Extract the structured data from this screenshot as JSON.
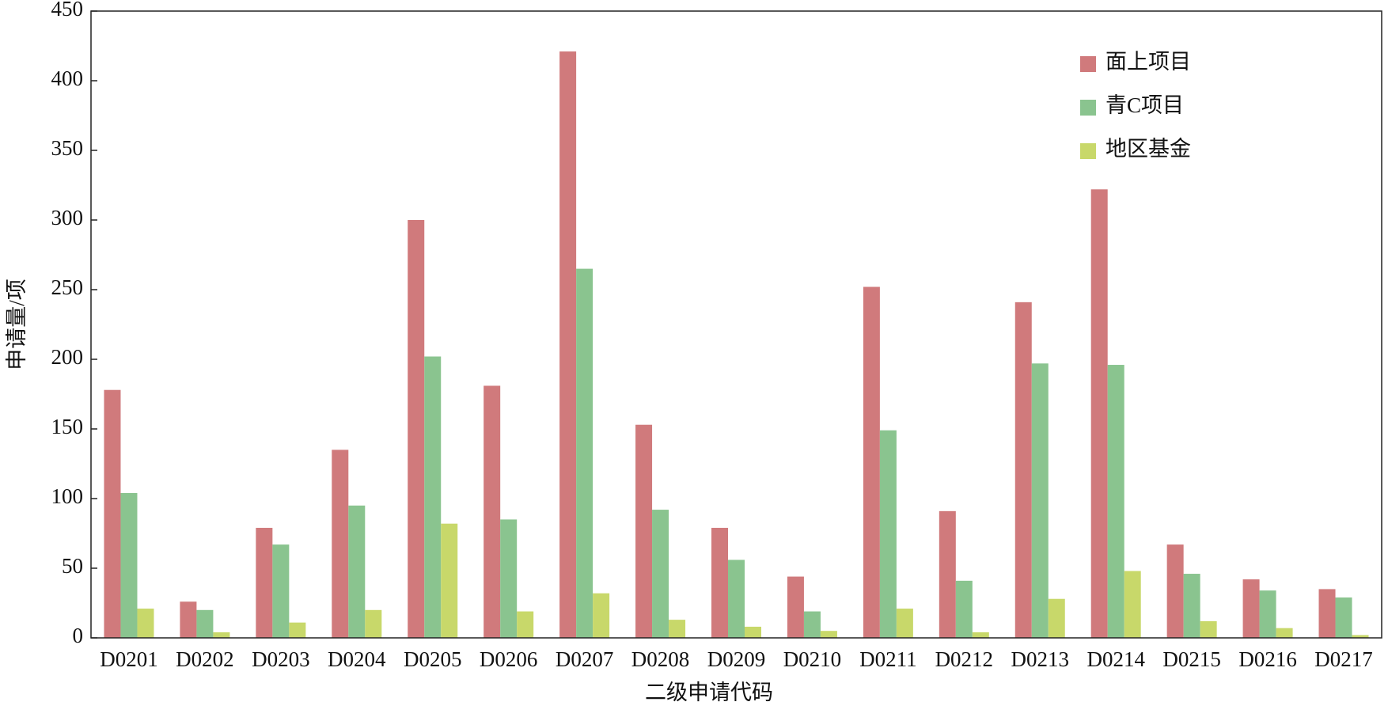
{
  "chart_data": {
    "type": "bar",
    "x_label": "二级申请代码",
    "y_label": "申请量/项",
    "categories": [
      "D0201",
      "D0202",
      "D0203",
      "D0204",
      "D0205",
      "D0206",
      "D0207",
      "D0208",
      "D0209",
      "D0210",
      "D0211",
      "D0212",
      "D0213",
      "D0214",
      "D0215",
      "D0216",
      "D0217"
    ],
    "series": [
      {
        "name": "面上项目",
        "color": "#d07a7c",
        "values": [
          178,
          26,
          79,
          135,
          300,
          181,
          421,
          153,
          79,
          44,
          252,
          91,
          241,
          322,
          67,
          42,
          35
        ]
      },
      {
        "name": "青C项目",
        "color": "#8ac48f",
        "values": [
          104,
          20,
          67,
          95,
          202,
          85,
          265,
          92,
          56,
          19,
          149,
          41,
          197,
          196,
          46,
          34,
          29
        ]
      },
      {
        "name": "地区基金",
        "color": "#c8d86a",
        "values": [
          21,
          4,
          11,
          20,
          82,
          19,
          32,
          13,
          8,
          5,
          21,
          4,
          28,
          48,
          12,
          7,
          2
        ]
      }
    ],
    "ylim": [
      0,
      450
    ],
    "yticks": [
      0,
      50,
      100,
      150,
      200,
      250,
      300,
      350,
      400,
      450
    ],
    "legend": "upper-right"
  }
}
